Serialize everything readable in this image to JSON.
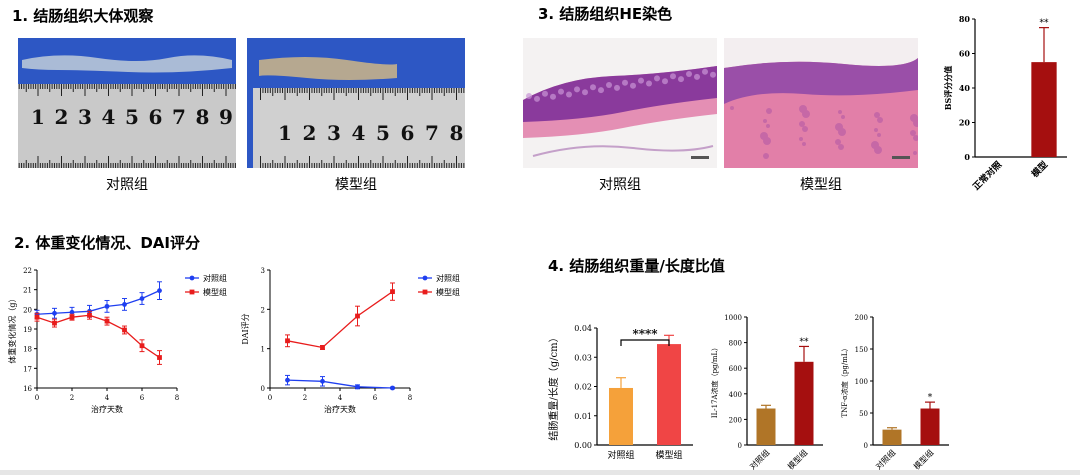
{
  "sections": {
    "s1": "1. 结肠组织大体观察",
    "s2": "2. 体重变化情况、DAI评分",
    "s3": "3. 结肠组织HE染色",
    "s4": "4. 结肠组织重量/长度比值"
  },
  "photos": {
    "gross_control": {
      "caption": "对照组",
      "ruler": [
        "1",
        "2",
        "3",
        "4",
        "5",
        "6",
        "7",
        "8",
        "9"
      ]
    },
    "gross_model": {
      "caption": "模型组",
      "ruler": [
        "1",
        "2",
        "3",
        "4",
        "5",
        "6",
        "7",
        "8"
      ]
    },
    "he_control": {
      "caption": "对照组"
    },
    "he_model": {
      "caption": "模型组"
    }
  },
  "colors": {
    "blue": "#1f3ff0",
    "red": "#e81c1c",
    "dark_red": "#a50f0f",
    "orange": "#f5a13a",
    "bright_red": "#f04545",
    "brown": "#b07527",
    "ruler_blue": "#2d57c4",
    "he_purple": "#8a3a9c",
    "he_pink": "#e48fb4"
  },
  "chart_data": [
    {
      "id": "weight",
      "type": "line",
      "title": "",
      "xlabel": "治疗天数",
      "ylabel": "体重变化情况（g）",
      "xlim": [
        0,
        8
      ],
      "ylim": [
        16,
        22
      ],
      "xticks": [
        0,
        2,
        4,
        6,
        8
      ],
      "yticks": [
        16,
        17,
        18,
        19,
        20,
        21,
        22
      ],
      "legend_position": "top-right",
      "series": [
        {
          "name": "对照组",
          "color": "blue",
          "marker": "circle",
          "x": [
            0,
            1,
            2,
            3,
            4,
            5,
            6,
            7
          ],
          "y": [
            19.75,
            19.8,
            19.85,
            19.9,
            20.15,
            20.25,
            20.55,
            20.95
          ],
          "err": [
            0.2,
            0.25,
            0.25,
            0.3,
            0.3,
            0.3,
            0.3,
            0.45
          ]
        },
        {
          "name": "模型组",
          "color": "red",
          "marker": "square",
          "x": [
            0,
            1,
            2,
            3,
            4,
            5,
            6,
            7
          ],
          "y": [
            19.6,
            19.3,
            19.6,
            19.7,
            19.4,
            18.95,
            18.15,
            17.55
          ],
          "err": [
            0.2,
            0.2,
            0.15,
            0.2,
            0.2,
            0.2,
            0.3,
            0.35
          ]
        }
      ]
    },
    {
      "id": "dai",
      "type": "line",
      "title": "",
      "xlabel": "治疗天数",
      "ylabel": "DAI评分",
      "xlim": [
        0,
        8
      ],
      "ylim": [
        0,
        3
      ],
      "xticks": [
        0,
        2,
        4,
        6,
        8
      ],
      "yticks": [
        0,
        1,
        2,
        3
      ],
      "legend_position": "top-right",
      "series": [
        {
          "name": "对照组",
          "color": "blue",
          "marker": "circle",
          "x": [
            1,
            3,
            5,
            7
          ],
          "y": [
            0.2,
            0.17,
            0.03,
            0.0
          ],
          "err": [
            0.12,
            0.12,
            0.05,
            0.02
          ]
        },
        {
          "name": "模型组",
          "color": "red",
          "marker": "square",
          "x": [
            1,
            3,
            5,
            7
          ],
          "y": [
            1.2,
            1.03,
            1.83,
            2.45
          ],
          "err": [
            0.15,
            0.05,
            0.25,
            0.22
          ]
        }
      ]
    },
    {
      "id": "bs",
      "type": "bar",
      "title": "",
      "xlabel": "",
      "ylabel": "BS评分分值",
      "ylim": [
        0,
        80
      ],
      "yticks": [
        0,
        20,
        40,
        60,
        80
      ],
      "categories": [
        "正常对照",
        "模型"
      ],
      "values": [
        0,
        55
      ],
      "err": [
        0,
        20
      ],
      "bar_colors": [
        "dark_red",
        "dark_red"
      ],
      "annotations": [
        "",
        "**"
      ]
    },
    {
      "id": "ratio",
      "type": "bar",
      "title": "",
      "xlabel": "",
      "ylabel": "结肠重量/长度（g/cm）",
      "ylim": [
        0,
        0.04
      ],
      "yticks": [
        0.0,
        0.01,
        0.02,
        0.03,
        0.04
      ],
      "ytick_labels": [
        "0.00",
        "0.01",
        "0.02",
        "0.03",
        "0.04"
      ],
      "categories": [
        "对照组",
        "模型组"
      ],
      "values": [
        0.0195,
        0.0345
      ],
      "err": [
        0.0035,
        0.003
      ],
      "bar_colors": [
        "orange",
        "bright_red"
      ],
      "significance": "****"
    },
    {
      "id": "il17",
      "type": "bar",
      "title": "",
      "xlabel": "",
      "ylabel": "IL-17A浓度（pg/mL）",
      "ylim": [
        0,
        1000
      ],
      "yticks": [
        0,
        200,
        400,
        600,
        800,
        1000
      ],
      "categories": [
        "对照组",
        "模型组"
      ],
      "values": [
        285,
        650
      ],
      "err": [
        25,
        120
      ],
      "bar_colors": [
        "brown",
        "dark_red"
      ],
      "annotations": [
        "",
        "**"
      ]
    },
    {
      "id": "tnf",
      "type": "bar",
      "title": "",
      "xlabel": "",
      "ylabel": "TNF-α浓度（pg/mL）",
      "ylim": [
        0,
        200
      ],
      "yticks": [
        0,
        50,
        100,
        150,
        200
      ],
      "categories": [
        "对照组",
        "模型组"
      ],
      "values": [
        24,
        57
      ],
      "err": [
        3,
        10
      ],
      "bar_colors": [
        "brown",
        "dark_red"
      ],
      "annotations": [
        "",
        "*"
      ]
    }
  ]
}
